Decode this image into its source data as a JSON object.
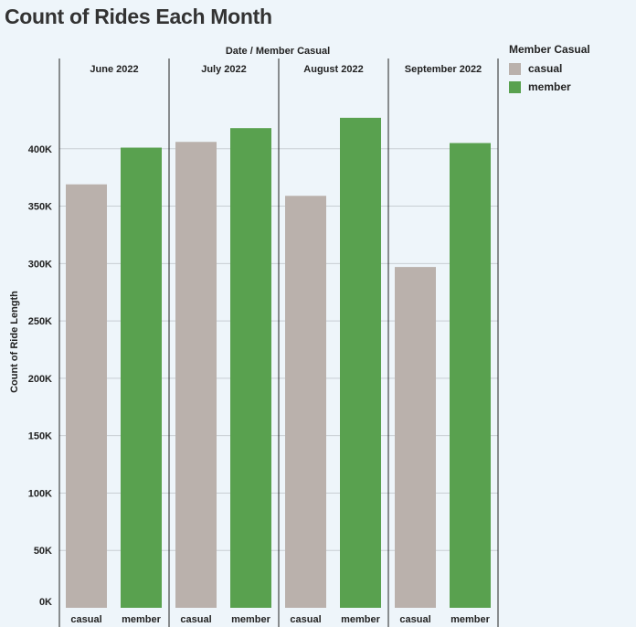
{
  "title": "Count of Rides Each Month",
  "chart_data": {
    "type": "bar",
    "header": "Date  /  Member Casual",
    "ylabel": "Count of Ride Length",
    "ylim": [
      0,
      450000
    ],
    "yticks": [
      0,
      50000,
      100000,
      150000,
      200000,
      250000,
      300000,
      350000,
      400000
    ],
    "ytick_labels": [
      "0K",
      "50K",
      "100K",
      "150K",
      "200K",
      "250K",
      "300K",
      "350K",
      "400K"
    ],
    "grid": true,
    "legend": {
      "title": "Member Casual",
      "placement": "right",
      "entries": [
        {
          "name": "casual",
          "color": "#bab1ac"
        },
        {
          "name": "member",
          "color": "#59a14f"
        }
      ]
    },
    "groups": [
      {
        "label": "June 2022",
        "bars": [
          {
            "category": "casual",
            "value": 369000
          },
          {
            "category": "member",
            "value": 401000
          }
        ]
      },
      {
        "label": "July 2022",
        "bars": [
          {
            "category": "casual",
            "value": 406000
          },
          {
            "category": "member",
            "value": 418000
          }
        ]
      },
      {
        "label": "August 2022",
        "bars": [
          {
            "category": "casual",
            "value": 359000
          },
          {
            "category": "member",
            "value": 427000
          }
        ]
      },
      {
        "label": "September 2022",
        "bars": [
          {
            "category": "casual",
            "value": 297000
          },
          {
            "category": "member",
            "value": 405000
          }
        ]
      }
    ]
  }
}
